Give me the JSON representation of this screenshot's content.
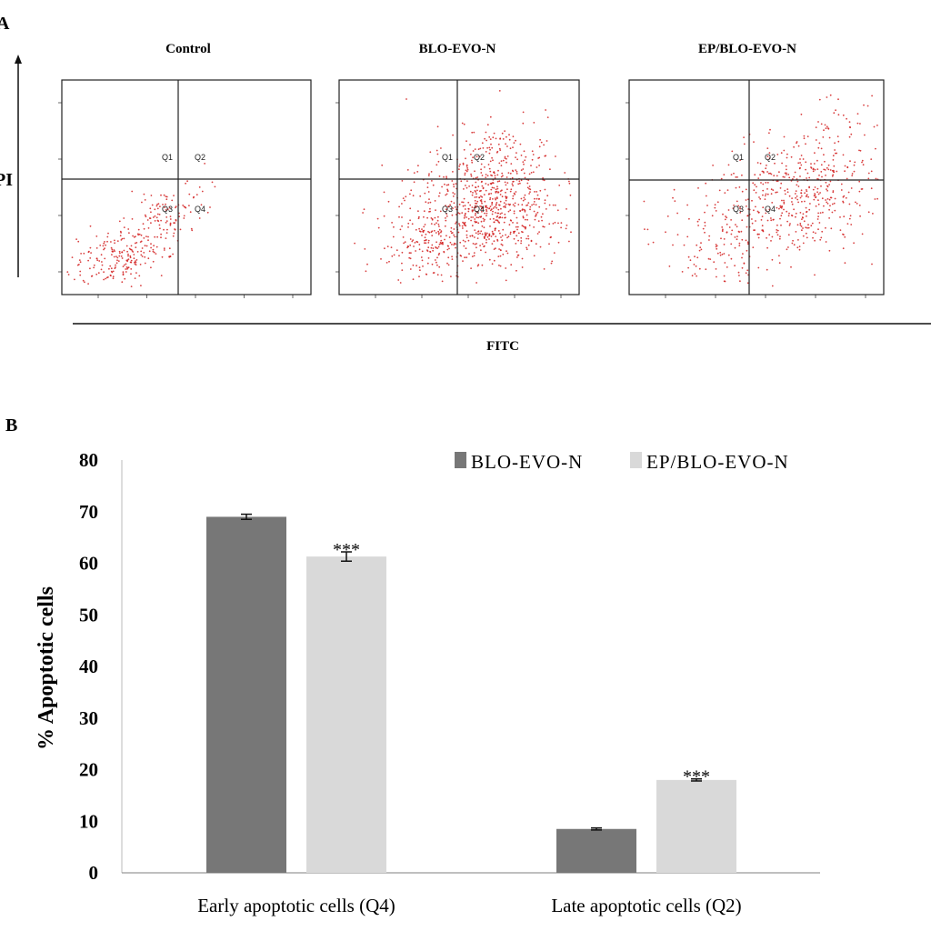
{
  "panel_a": {
    "label": "A",
    "y_axis_label": "PI",
    "x_axis_label": "FITC",
    "plots": [
      {
        "title": "Control",
        "quadrants": [
          "Q1",
          "Q2",
          "Q3",
          "Q4"
        ]
      },
      {
        "title": "BLO-EVO-N",
        "quadrants": [
          "Q1",
          "Q2",
          "Q3",
          "Q4"
        ]
      },
      {
        "title": "EP/BLO-EVO-N",
        "quadrants": [
          "Q1",
          "Q2",
          "Q3",
          "Q4"
        ]
      }
    ],
    "colors": {
      "dots": "#d21f1f",
      "lines": "#222222"
    }
  },
  "panel_b": {
    "label": "B"
  },
  "chart_data": {
    "type": "bar",
    "ylabel": "% Apoptotic  cells",
    "xlabel": "",
    "categories": [
      "Early apoptotic cells (Q4)",
      "Late apoptotic cells (Q2)"
    ],
    "ylim": [
      0,
      80
    ],
    "yticks": [
      0,
      10,
      20,
      30,
      40,
      50,
      60,
      70,
      80
    ],
    "legend_position": "top-right",
    "grid": false,
    "series": [
      {
        "name": "BLO-EVO-N",
        "values": [
          69,
          8.5
        ],
        "errors": [
          0.5,
          0.2
        ],
        "color": "#777777",
        "annotations": [
          "",
          ""
        ]
      },
      {
        "name": "EP/BLO-EVO-N",
        "values": [
          61.3,
          18
        ],
        "errors": [
          0.9,
          0.2
        ],
        "color": "#d9d9d9",
        "annotations": [
          "***",
          "***"
        ]
      }
    ]
  }
}
